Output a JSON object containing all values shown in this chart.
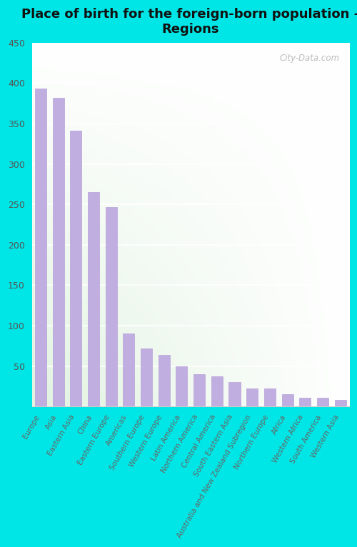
{
  "title": "Place of birth for the foreign-born population -\nRegions",
  "categories": [
    "Europe",
    "Asia",
    "Eastern Asia",
    "China",
    "Eastern Europe",
    "Americas",
    "Southern Europe",
    "Western Europe",
    "Latin America",
    "Northern America",
    "Central America",
    "South Eastern Asia",
    "Australia and New Zealand Subregion",
    "Northern Europe",
    "Africa",
    "Western Africa",
    "South America",
    "Western Asia"
  ],
  "values": [
    393,
    382,
    341,
    265,
    247,
    90,
    72,
    64,
    50,
    40,
    37,
    30,
    22,
    22,
    15,
    11,
    11,
    8
  ],
  "bar_color": "#c0aee0",
  "bar_edge_color": "#b8a0d8",
  "ylim": [
    0,
    450
  ],
  "yticks": [
    0,
    50,
    100,
    150,
    200,
    250,
    300,
    350,
    400,
    450
  ],
  "fig_background": "#00e5e5",
  "title_fontsize": 13,
  "tick_label_fontsize": 7.5,
  "ytick_fontsize": 9,
  "watermark": "City-Data.com"
}
